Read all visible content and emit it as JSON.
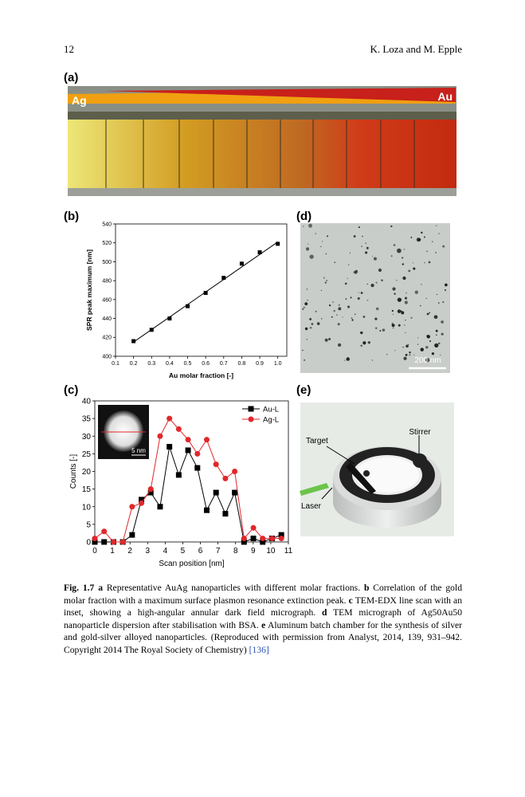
{
  "header": {
    "page_number": "12",
    "authors": "K. Loza and M. Epple"
  },
  "panels": {
    "a": "(a)",
    "b": "(b)",
    "c": "(c)",
    "d": "(d)",
    "e": "(e)"
  },
  "panel_a": {
    "left_label": "Ag",
    "right_label": "Au"
  },
  "panel_d": {
    "scale_bar": "200 nm"
  },
  "panel_e": {
    "labels": [
      "Stirrer",
      "Target",
      "Laser"
    ]
  },
  "chart_data": [
    {
      "type": "scatter",
      "x_label": "Au molar fraction [-]",
      "y_label": "SPR peak maximum [nm]",
      "x": [
        0.2,
        0.3,
        0.4,
        0.5,
        0.6,
        0.7,
        0.8,
        0.9,
        1.0
      ],
      "values": [
        416,
        428,
        440,
        453,
        467,
        483,
        498,
        510,
        519
      ],
      "color": "#000000",
      "marker": "square",
      "fit_line": {
        "x": [
          0.2,
          1.0
        ],
        "y": [
          415,
          521
        ]
      },
      "xlim": [
        0.1,
        1.05
      ],
      "xticks": [
        0.1,
        0.2,
        0.3,
        0.4,
        0.5,
        0.6,
        0.7,
        0.8,
        0.9,
        {
          "value": 1,
          "label": "1.0"
        }
      ],
      "ylim": [
        400,
        540
      ],
      "yticks": [
        400,
        420,
        440,
        460,
        480,
        500,
        520,
        540
      ]
    },
    {
      "type": "line",
      "x_label": "Scan position [nm]",
      "y_label": "Counts [-]",
      "inset_label": "5 nm",
      "x": [
        0,
        0.53,
        1.06,
        1.59,
        2.12,
        2.65,
        3.18,
        3.71,
        4.24,
        4.77,
        5.3,
        5.83,
        6.36,
        6.89,
        7.42,
        7.95,
        8.48,
        9.01,
        9.54,
        10.07,
        10.6
      ],
      "series": [
        {
          "name": "Au-L",
          "color": "#000000",
          "marker": "square",
          "values": [
            0,
            0,
            0,
            0,
            2,
            12,
            14,
            10,
            27,
            19,
            26,
            21,
            9,
            14,
            8,
            14,
            0,
            1,
            0,
            1,
            2
          ]
        },
        {
          "name": "Ag-L",
          "color": "#e0282c",
          "marker": "circle",
          "values": [
            1,
            3,
            0,
            0,
            10,
            11,
            15,
            30,
            35,
            32,
            29,
            25,
            29,
            22,
            18,
            20,
            1,
            4,
            1,
            1,
            1
          ]
        }
      ],
      "legend": "upper-right",
      "xlim": [
        0,
        11
      ],
      "xticks": [
        0,
        1,
        2,
        3,
        4,
        5,
        6,
        7,
        8,
        9,
        10,
        11
      ],
      "ylim": [
        0,
        40
      ],
      "yticks": [
        0,
        5,
        10,
        15,
        20,
        25,
        30,
        35,
        40
      ]
    }
  ],
  "caption": [
    {
      "text": "Fig. 1.7",
      "style": "bold"
    },
    {
      "text": "  ",
      "style": "normal"
    },
    {
      "text": "a",
      "style": "bold"
    },
    {
      "text": " Representative AuAg nanoparticles with different molar fractions. ",
      "style": "normal"
    },
    {
      "text": "b",
      "style": "bold"
    },
    {
      "text": " Correlation of the gold molar fraction with a maximum surface plasmon resonance extinction peak. ",
      "style": "normal"
    },
    {
      "text": "c",
      "style": "bold"
    },
    {
      "text": " TEM-EDX line scan with an inset, showing a high-angular annular dark field micrograph. ",
      "style": "normal"
    },
    {
      "text": "d",
      "style": "bold"
    },
    {
      "text": " TEM micrograph of Ag50Au50 nanoparticle dispersion after stabilisation with BSA. ",
      "style": "normal"
    },
    {
      "text": "e",
      "style": "bold"
    },
    {
      "text": " Aluminum batch chamber for the synthesis of silver and gold-silver alloyed nanoparticles. (Reproduced with permission from Analyst, 2014, 139, 931–942. Copyright 2014 The Royal Society of Chemistry) ",
      "style": "normal"
    },
    {
      "text": "[136]",
      "style": "link"
    }
  ]
}
